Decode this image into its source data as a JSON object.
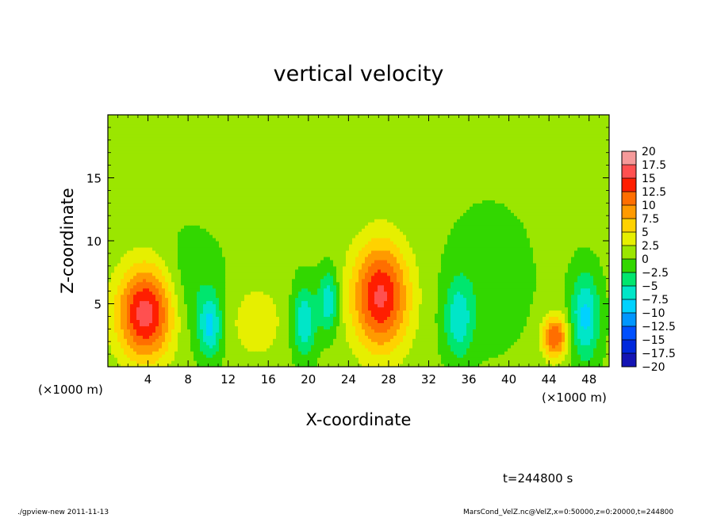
{
  "chart_data": {
    "type": "heatmap",
    "title": "vertical velocity",
    "xlabel": "X-coordinate",
    "ylabel": "Z-coordinate",
    "x_unit_left": "(×1000 m)",
    "x_unit_right": "(×1000 m)",
    "xlim": [
      0,
      50
    ],
    "ylim": [
      0,
      20
    ],
    "xticks": [
      4,
      8,
      12,
      16,
      20,
      24,
      28,
      32,
      36,
      40,
      44,
      48
    ],
    "yticks": [
      5,
      10,
      15
    ],
    "colorbar": {
      "levels": [
        20,
        17.5,
        15,
        12.5,
        10,
        7.5,
        5,
        2.5,
        0,
        -2.5,
        -5,
        -7.5,
        -10,
        -12.5,
        -15,
        -17.5,
        -20
      ],
      "labels": [
        "20",
        "17.5",
        "15",
        "12.5",
        "10",
        "7.5",
        "5",
        "2.5",
        "0",
        "−2.5",
        "−5",
        "−7.5",
        "−10",
        "−12.5",
        "−15",
        "−17.5",
        "−20"
      ],
      "colors": [
        "#f59a9a",
        "#ff5050",
        "#ff1e00",
        "#ff6e00",
        "#ff9a00",
        "#ffd200",
        "#e6ef00",
        "#9be600",
        "#32d700",
        "#00e66e",
        "#00e6c8",
        "#00d2ff",
        "#0096ff",
        "#0050ff",
        "#0028dc",
        "#1414b4",
        "#6e1eb4"
      ]
    },
    "features": [
      {
        "x": 3.8,
        "z": 4.3,
        "sx": 2.0,
        "sz": 2.6,
        "value": 16
      },
      {
        "x": 27.2,
        "z": 5.6,
        "sx": 2.0,
        "sz": 3.0,
        "value": 15
      },
      {
        "x": 44.6,
        "z": 2.4,
        "sx": 0.9,
        "sz": 1.2,
        "value": 12
      },
      {
        "x": 14.8,
        "z": 3.6,
        "sx": 1.8,
        "sz": 2.0,
        "value": 4
      },
      {
        "x": 10.2,
        "z": 3.2,
        "sx": 0.8,
        "sz": 1.7,
        "value": -8
      },
      {
        "x": 19.6,
        "z": 3.6,
        "sx": 0.8,
        "sz": 2.0,
        "value": -8
      },
      {
        "x": 22.0,
        "z": 5.2,
        "sx": 0.7,
        "sz": 1.7,
        "value": -8
      },
      {
        "x": 35.0,
        "z": 3.8,
        "sx": 1.0,
        "sz": 2.2,
        "value": -7
      },
      {
        "x": 47.6,
        "z": 4.0,
        "sx": 1.0,
        "sz": 2.4,
        "value": -9
      },
      {
        "x": 8.2,
        "z": 6.0,
        "sx": 2.2,
        "sz": 3.0,
        "value": -3
      },
      {
        "x": 38.0,
        "z": 7.0,
        "sx": 3.0,
        "sz": 4.0,
        "value": -2
      }
    ]
  },
  "time_label": "t=244800 s",
  "footer_left": "./gpview-new   2011-11-13",
  "footer_right": "MarsCond_VelZ.nc@VelZ,x=0:50000,z=0:20000,t=244800"
}
